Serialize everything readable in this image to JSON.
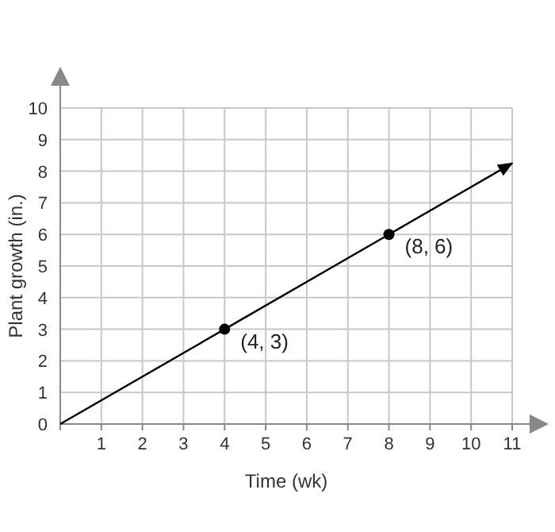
{
  "chart_data": {
    "type": "line",
    "xlabel": "Time (wk)",
    "ylabel": "Plant growth (in.)",
    "xlim": [
      0,
      11
    ],
    "ylim": [
      0,
      10
    ],
    "xticks": [
      {
        "value": 0,
        "label": null
      },
      1,
      2,
      3,
      4,
      5,
      6,
      7,
      8,
      9,
      10,
      11
    ],
    "yticks": [
      0,
      1,
      2,
      3,
      4,
      5,
      6,
      7,
      8,
      9,
      10
    ],
    "grid": true,
    "series": [
      {
        "color": "#000000",
        "x": [
          0,
          4,
          8,
          11
        ],
        "values": [
          0,
          3,
          6,
          8.25
        ],
        "marker": "none",
        "line_style": "solid"
      },
      {
        "type": "scatter",
        "color": "#000000",
        "x": [
          4,
          8
        ],
        "values": [
          3,
          6
        ],
        "marker": "circle"
      }
    ],
    "annotations": [
      {
        "text": "(4, 3)",
        "x": 4,
        "y": 3
      },
      {
        "text": "(8, 6)",
        "x": 8,
        "y": 6
      }
    ]
  }
}
